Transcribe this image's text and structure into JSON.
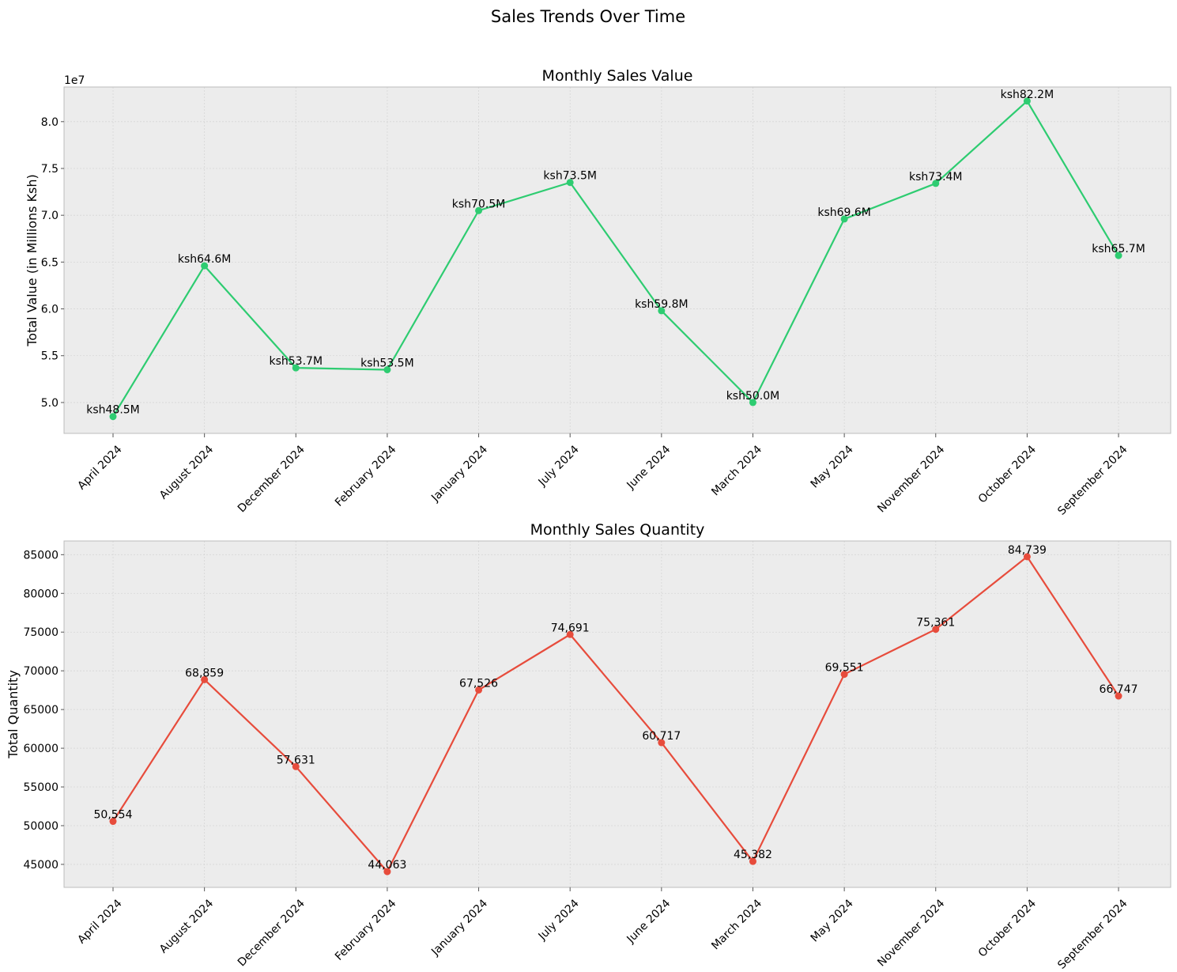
{
  "figure": {
    "suptitle": "Sales Trends Over Time"
  },
  "chart_data": [
    {
      "type": "line",
      "title": "Monthly Sales Value",
      "xlabel": "",
      "ylabel": "Total Value (in Millions Ksh)",
      "y_offset_label": "1e7",
      "categories": [
        "April 2024",
        "August 2024",
        "December 2024",
        "February 2024",
        "January 2024",
        "July 2024",
        "June 2024",
        "March 2024",
        "May 2024",
        "November 2024",
        "October 2024",
        "September 2024"
      ],
      "series": [
        {
          "values": [
            48500000,
            64600000,
            53700000,
            53500000,
            70500000,
            73500000,
            59800000,
            50000000,
            69600000,
            73400000,
            82200000,
            65700000
          ],
          "data_labels": [
            "ksh48.5M",
            "ksh64.6M",
            "ksh53.7M",
            "ksh53.5M",
            "ksh70.5M",
            "ksh73.5M",
            "ksh59.8M",
            "ksh50.0M",
            "ksh69.6M",
            "ksh73.4M",
            "ksh82.2M",
            "ksh65.7M"
          ],
          "color": "#2ecc71"
        }
      ],
      "ylim": [
        46700000,
        83700000
      ],
      "yticks": [
        50000000,
        55000000,
        60000000,
        65000000,
        70000000,
        75000000,
        80000000
      ],
      "ytick_labels": [
        "5.0",
        "5.5",
        "6.0",
        "6.5",
        "7.0",
        "7.5",
        "8.0"
      ],
      "grid": true,
      "background": "#ececec"
    },
    {
      "type": "line",
      "title": "Monthly Sales Quantity",
      "xlabel": "",
      "ylabel": "Total Quantity",
      "categories": [
        "April 2024",
        "August 2024",
        "December 2024",
        "February 2024",
        "January 2024",
        "July 2024",
        "June 2024",
        "March 2024",
        "May 2024",
        "November 2024",
        "October 2024",
        "September 2024"
      ],
      "series": [
        {
          "values": [
            50554,
            68859,
            57631,
            44063,
            67526,
            74691,
            60717,
            45382,
            69551,
            75361,
            84739,
            66747
          ],
          "data_labels": [
            "50,554",
            "68,859",
            "57,631",
            "44,063",
            "67,526",
            "74,691",
            "60,717",
            "45,382",
            "69,551",
            "75,361",
            "84,739",
            "66,747"
          ],
          "color": "#e74c3c"
        }
      ],
      "ylim": [
        42030,
        86770
      ],
      "yticks": [
        45000,
        50000,
        55000,
        60000,
        65000,
        70000,
        75000,
        80000,
        85000
      ],
      "ytick_labels": [
        "45000",
        "50000",
        "55000",
        "60000",
        "65000",
        "70000",
        "75000",
        "80000",
        "85000"
      ],
      "grid": true,
      "background": "#ececec"
    }
  ]
}
